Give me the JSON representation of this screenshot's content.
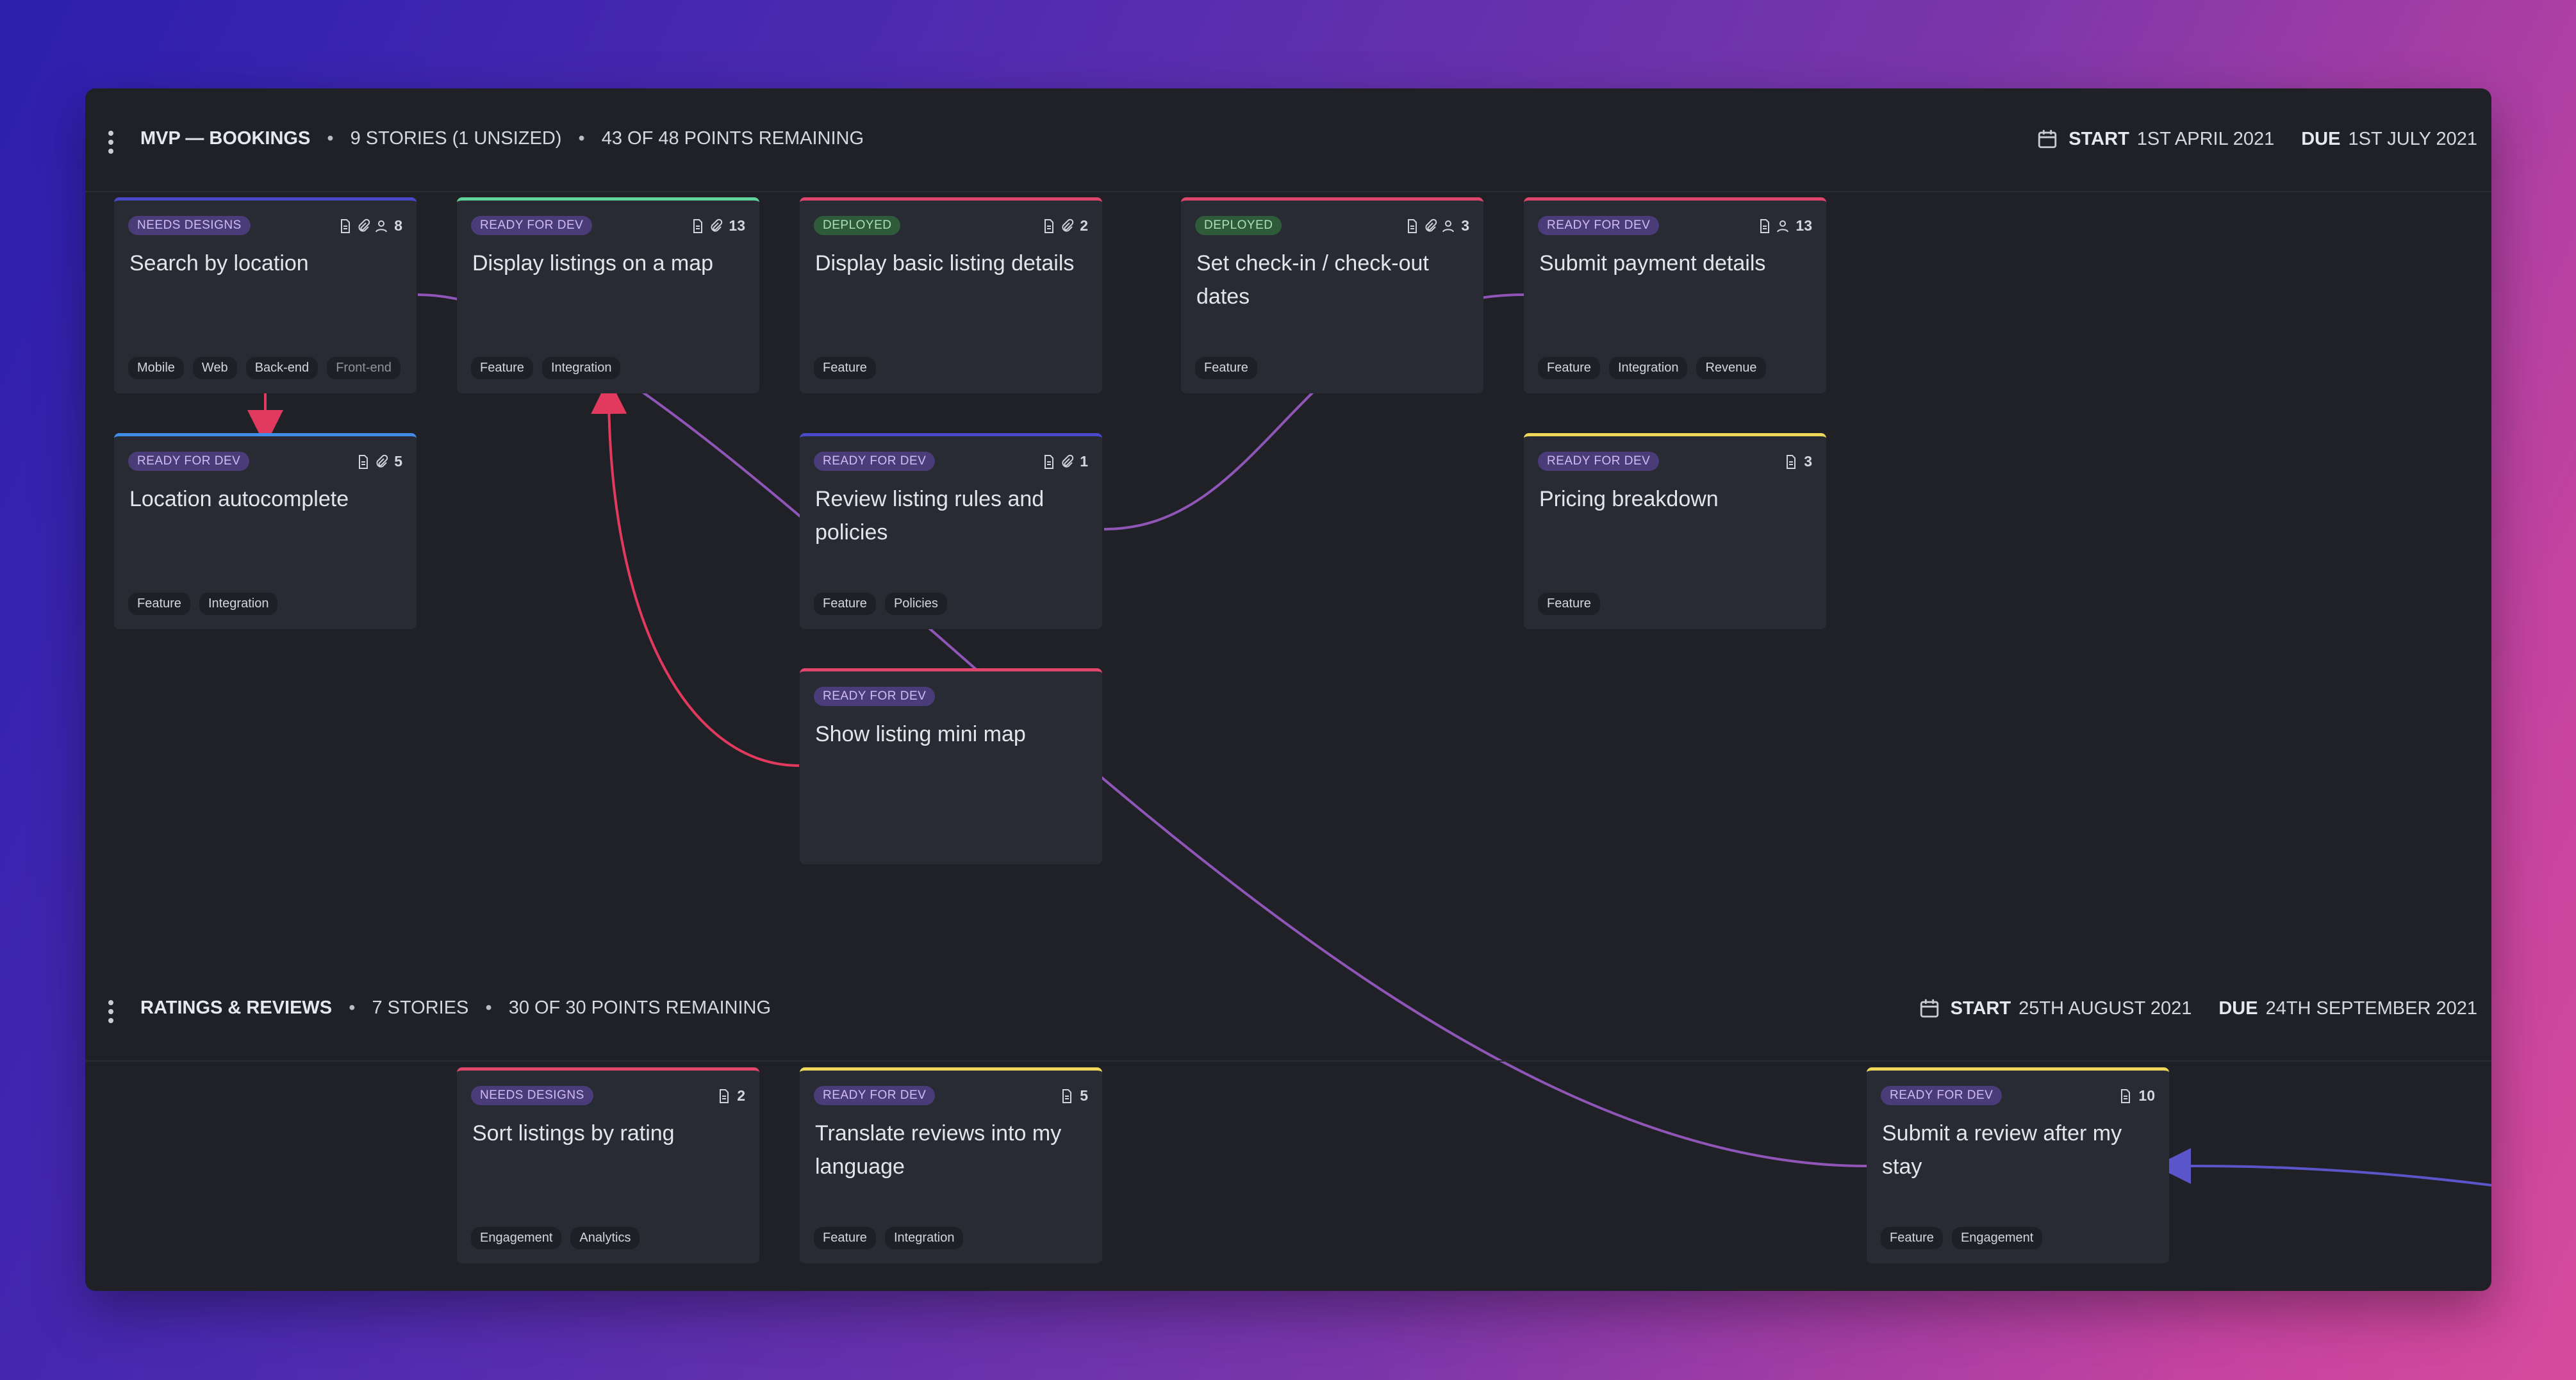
{
  "sections": [
    {
      "title": "MVP — BOOKINGS",
      "stories": "9 STORIES (1 UNSIZED)",
      "points": "43 OF 48 POINTS REMAINING",
      "start_label": "START",
      "start_date": "1ST APRIL 2021",
      "due_label": "DUE",
      "due_date": "1ST JULY 2021"
    },
    {
      "title": "RATINGS & REVIEWS",
      "stories": "7 STORIES",
      "points": "30 OF 30 POINTS REMAINING",
      "start_label": "START",
      "start_date": "25TH AUGUST 2021",
      "due_label": "DUE",
      "due_date": "24TH SEPTEMBER 2021"
    }
  ],
  "cards": [
    {
      "status": "NEEDS DESIGNS",
      "title": "Search by location",
      "points": "8",
      "tags": [
        "Mobile",
        "Web",
        "Back-end",
        "Front-end"
      ],
      "accent": "#4a49c9"
    },
    {
      "status": "READY FOR DEV",
      "title": "Display listings on a map",
      "points": "13",
      "tags": [
        "Feature",
        "Integration"
      ],
      "accent": "#5fd39a"
    },
    {
      "status": "DEPLOYED",
      "title": "Display basic listing details",
      "points": "2",
      "tags": [
        "Feature"
      ],
      "accent": "#e0466b"
    },
    {
      "status": "DEPLOYED",
      "title": "Set check-in / check-out dates",
      "points": "3",
      "tags": [
        "Feature"
      ],
      "accent": "#e0466b"
    },
    {
      "status": "READY FOR DEV",
      "title": "Submit payment details",
      "points": "13",
      "tags": [
        "Feature",
        "Integration",
        "Revenue"
      ],
      "accent": "#e0466b"
    },
    {
      "status": "READY FOR DEV",
      "title": "Location autocomplete",
      "points": "5",
      "tags": [
        "Feature",
        "Integration"
      ],
      "accent": "#3f8de6"
    },
    {
      "status": "READY FOR DEV",
      "title": "Review listing rules and policies",
      "points": "1",
      "tags": [
        "Feature",
        "Policies"
      ],
      "accent": "#4a49c9"
    },
    {
      "status": "READY FOR DEV",
      "title": "Pricing breakdown",
      "points": "3",
      "tags": [
        "Feature"
      ],
      "accent": "#efd75a"
    },
    {
      "status": "READY FOR DEV",
      "title": "Show listing mini map",
      "points": "",
      "tags": [],
      "accent": "#e0466b"
    },
    {
      "status": "NEEDS DESIGNS",
      "title": "Sort listings by rating",
      "points": "2",
      "tags": [
        "Engagement",
        "Analytics"
      ],
      "accent": "#e0466b"
    },
    {
      "status": "READY FOR DEV",
      "title": "Translate reviews into my language",
      "points": "5",
      "tags": [
        "Feature",
        "Integration"
      ],
      "accent": "#efd75a"
    },
    {
      "status": "READY FOR DEV",
      "title": "Submit a review after my stay",
      "points": "10",
      "tags": [
        "Feature",
        "Engagement"
      ],
      "accent": "#efd75a"
    }
  ],
  "colors": {
    "dependency_purple": "#8f56b7",
    "dependency_red": "#e23a5e",
    "dependency_blue": "#5a55c9"
  }
}
